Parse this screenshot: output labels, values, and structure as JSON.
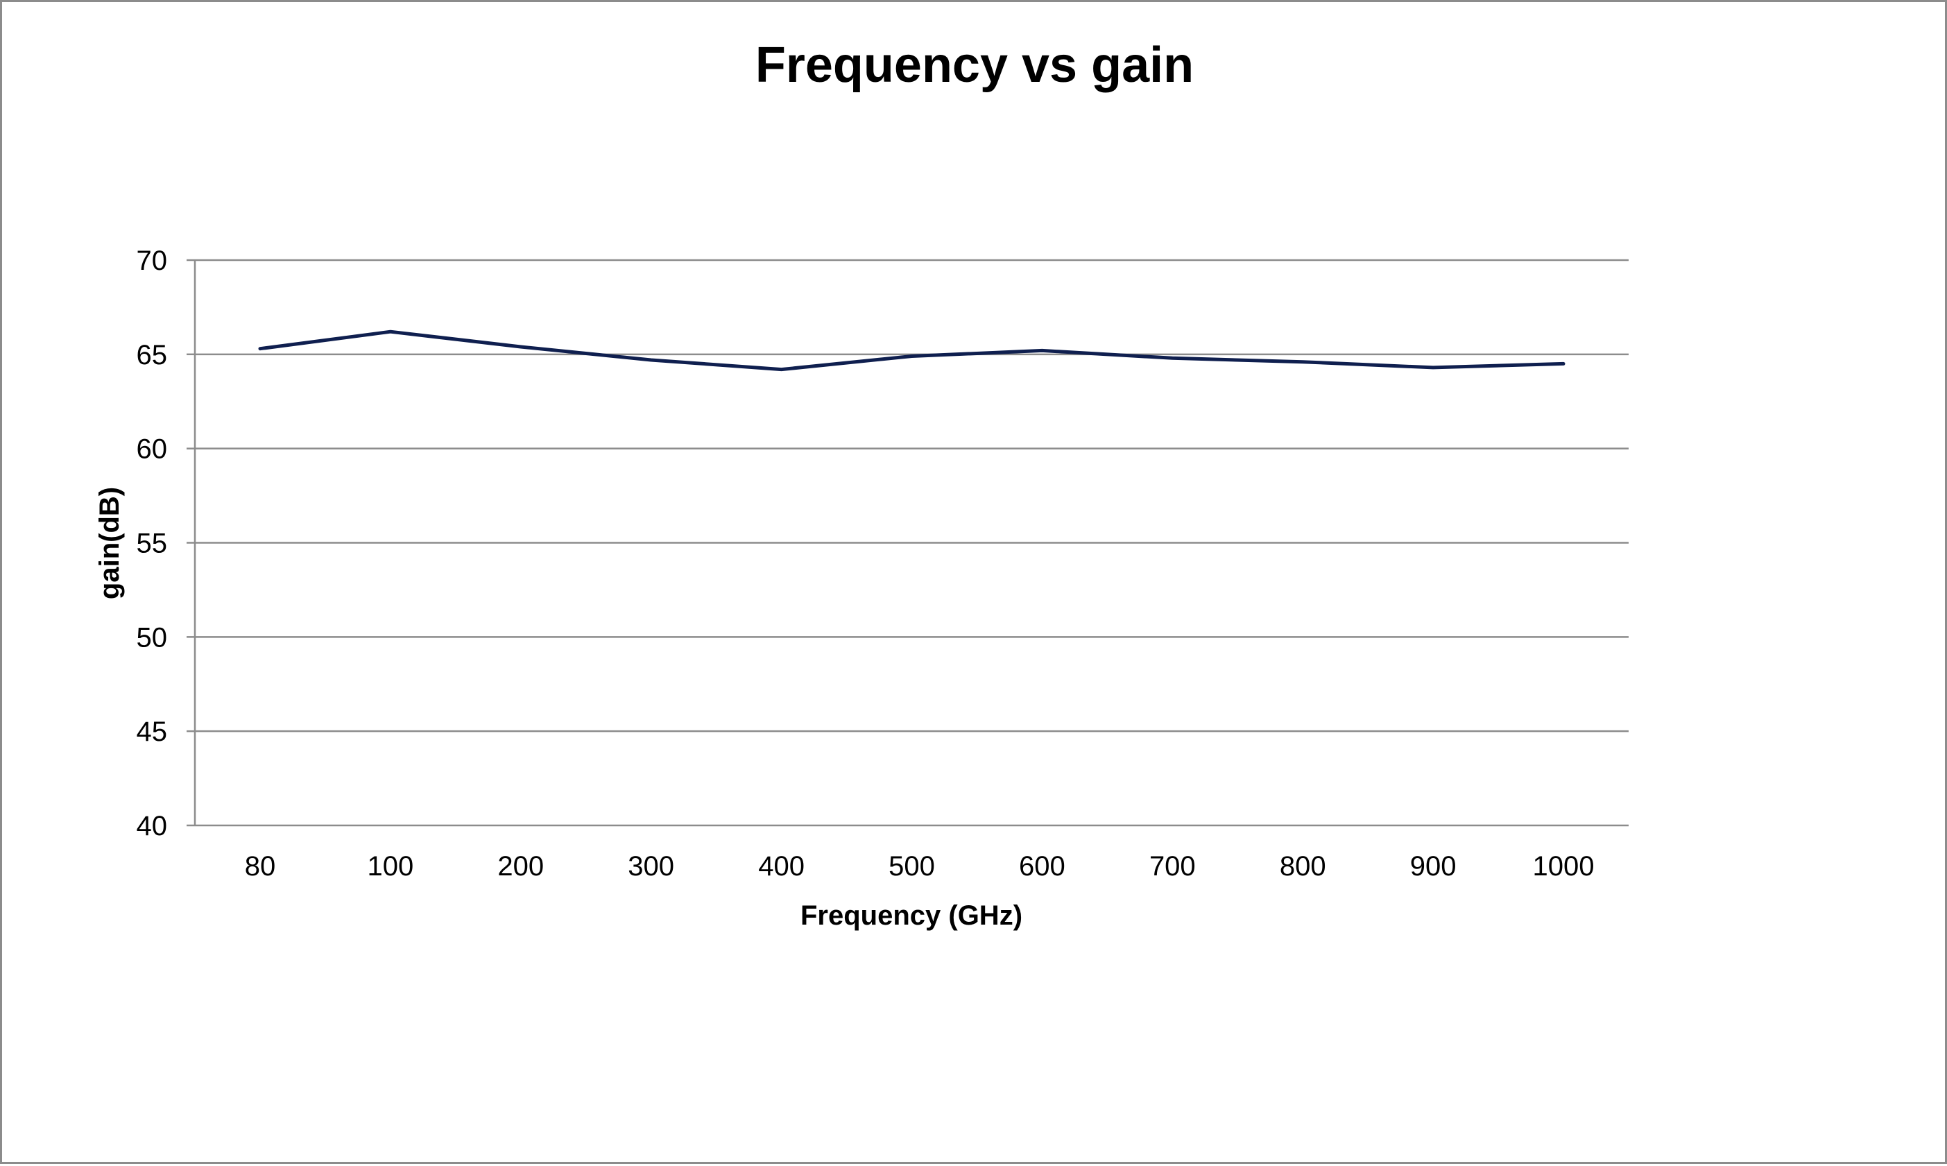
{
  "chart_data": {
    "type": "line",
    "title": "Frequency vs gain",
    "xlabel": "Frequency (GHz)",
    "ylabel": "gain(dB)",
    "categories": [
      "80",
      "100",
      "200",
      "300",
      "400",
      "500",
      "600",
      "700",
      "800",
      "900",
      "1000"
    ],
    "series": [
      {
        "values": [
          65.3,
          66.2,
          65.4,
          64.7,
          64.2,
          64.9,
          65.2,
          64.8,
          64.6,
          64.3,
          64.5
        ],
        "color": "#0f1f4f"
      }
    ],
    "ylim": [
      40,
      70
    ],
    "yticks": [
      40,
      45,
      50,
      55,
      60,
      65,
      70
    ],
    "grid": true,
    "legend": "none"
  }
}
